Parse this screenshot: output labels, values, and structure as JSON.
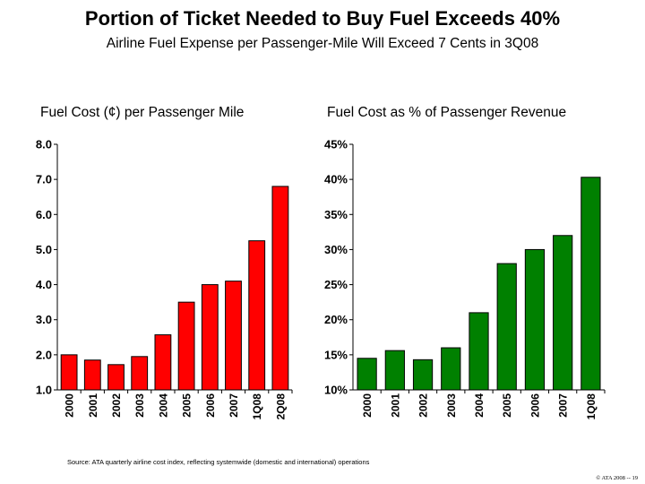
{
  "header": {
    "title": "Portion of Ticket Needed to Buy Fuel Exceeds 40%",
    "subtitle": "Airline Fuel Expense per Passenger-Mile Will Exceed 7 Cents in 3Q08"
  },
  "chart_data": [
    {
      "type": "bar",
      "title": "Fuel Cost (¢) per Passenger Mile",
      "categories": [
        "2000",
        "2001",
        "2002",
        "2003",
        "2004",
        "2005",
        "2006",
        "2007",
        "1Q08",
        "2Q08"
      ],
      "values": [
        2.0,
        1.85,
        1.72,
        1.95,
        2.57,
        3.5,
        4.0,
        4.1,
        5.25,
        6.8
      ],
      "ylim": [
        1.0,
        8.0
      ],
      "yticks": [
        "8.0",
        "7.0",
        "6.0",
        "5.0",
        "4.0",
        "3.0",
        "2.0",
        "1.0"
      ],
      "ytick_values": [
        8,
        7,
        6,
        5,
        4,
        3,
        2,
        1
      ],
      "bar_color": "#ff0000",
      "grid": false
    },
    {
      "type": "bar",
      "title": "Fuel Cost as % of Passenger Revenue",
      "categories": [
        "2000",
        "2001",
        "2002",
        "2003",
        "2004",
        "2005",
        "2006",
        "2007",
        "1Q08"
      ],
      "values": [
        14.5,
        15.6,
        14.3,
        16.0,
        21.0,
        28.0,
        30.0,
        32.0,
        40.3
      ],
      "ylim": [
        10,
        45
      ],
      "yticks": [
        "45%",
        "40%",
        "35%",
        "30%",
        "25%",
        "20%",
        "15%",
        "10%"
      ],
      "ytick_values": [
        45,
        40,
        35,
        30,
        25,
        20,
        15,
        10
      ],
      "bar_color": "#008000",
      "grid": false
    }
  ],
  "source": "Source: ATA quarterly airline cost index, reflecting systemwide (domestic and international) operations",
  "footer": "© ATA 2008 -- 19"
}
